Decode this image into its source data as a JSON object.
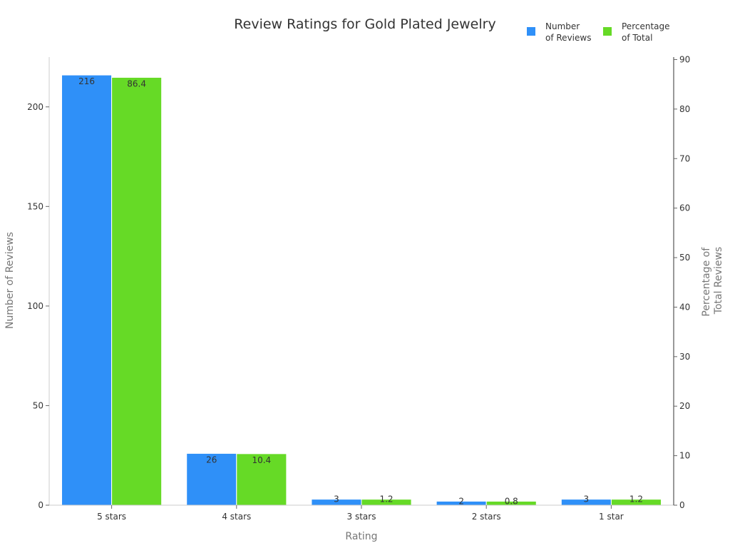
{
  "chart_data": {
    "type": "bar",
    "title": "Review Ratings for Gold Plated Jewelry",
    "xlabel": "Rating",
    "ylabel": "Number of Reviews",
    "y2label_lines": [
      "Percentage of",
      "Total Reviews"
    ],
    "categories": [
      "5 stars",
      "4 stars",
      "3 stars",
      "2 stars",
      "1 star"
    ],
    "series": [
      {
        "name_lines": [
          "Number",
          "of Reviews"
        ],
        "axis": "left",
        "color": "#2f90f8",
        "values": [
          216,
          26,
          3,
          2,
          3
        ],
        "labels": [
          "216",
          "26",
          "3",
          "2",
          "3"
        ]
      },
      {
        "name_lines": [
          "Percentage",
          "of Total"
        ],
        "axis": "right",
        "color": "#66da26",
        "values": [
          86.4,
          10.4,
          1.2,
          0.8,
          1.2
        ],
        "labels": [
          "86.4",
          "10.4",
          "1.2",
          "0.8",
          "1.2"
        ]
      }
    ],
    "ylim": [
      0,
      225
    ],
    "yticks": [
      0,
      50,
      100,
      150,
      200
    ],
    "y2lim": [
      0,
      90.5
    ],
    "y2ticks": [
      0,
      10,
      20,
      30,
      40,
      50,
      60,
      70,
      80,
      90
    ],
    "legend_position": "top-right",
    "grid": false
  }
}
